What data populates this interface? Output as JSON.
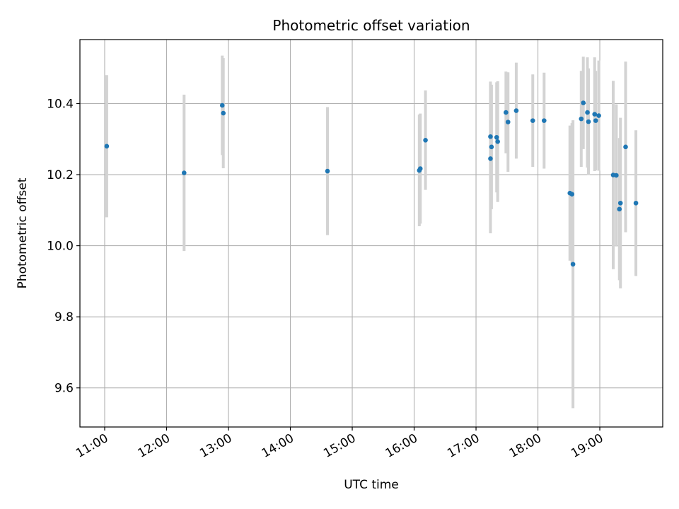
{
  "chart_data": {
    "type": "scatter",
    "title": "Photometric offset variation",
    "xlabel": "UTC time",
    "ylabel": "Photometric offset",
    "x_unit": "hours (UTC)",
    "xlim": [
      "10:36",
      "20:01"
    ],
    "ylim": [
      9.49,
      10.58
    ],
    "grid": true,
    "x_ticks": [
      "11:00",
      "12:00",
      "13:00",
      "14:00",
      "15:00",
      "16:00",
      "17:00",
      "18:00",
      "19:00"
    ],
    "y_ticks": [
      "9.6",
      "9.8",
      "10.0",
      "10.2",
      "10.4"
    ],
    "marker_color": "#1f77b4",
    "errorbar_color": "#d3d3d3",
    "points": [
      {
        "x": "11:02",
        "y": 10.28,
        "yerr": 0.2
      },
      {
        "x": "12:17",
        "y": 10.205,
        "yerr": 0.22
      },
      {
        "x": "12:54",
        "y": 10.395,
        "yerr": 0.14
      },
      {
        "x": "12:55",
        "y": 10.373,
        "yerr": 0.155
      },
      {
        "x": "14:36",
        "y": 10.21,
        "yerr": 0.18
      },
      {
        "x": "16:05",
        "y": 10.212,
        "yerr": 0.157
      },
      {
        "x": "16:06",
        "y": 10.217,
        "yerr": 0.155
      },
      {
        "x": "16:11",
        "y": 10.297,
        "yerr": 0.14
      },
      {
        "x": "17:14",
        "y": 10.307,
        "yerr": 0.155
      },
      {
        "x": "17:14",
        "y": 10.245,
        "yerr": 0.21
      },
      {
        "x": "17:15",
        "y": 10.278,
        "yerr": 0.175
      },
      {
        "x": "17:20",
        "y": 10.305,
        "yerr": 0.155
      },
      {
        "x": "17:21",
        "y": 10.293,
        "yerr": 0.17
      },
      {
        "x": "17:29",
        "y": 10.375,
        "yerr": 0.115
      },
      {
        "x": "17:31",
        "y": 10.348,
        "yerr": 0.14
      },
      {
        "x": "17:39",
        "y": 10.38,
        "yerr": 0.135
      },
      {
        "x": "17:55",
        "y": 10.352,
        "yerr": 0.13
      },
      {
        "x": "18:06",
        "y": 10.352,
        "yerr": 0.135
      },
      {
        "x": "18:31",
        "y": 10.148,
        "yerr": 0.19
      },
      {
        "x": "18:33",
        "y": 10.145,
        "yerr": 0.2
      },
      {
        "x": "18:34",
        "y": 9.948,
        "yerr": 0.405
      },
      {
        "x": "18:42",
        "y": 10.357,
        "yerr": 0.135
      },
      {
        "x": "18:44",
        "y": 10.402,
        "yerr": 0.13
      },
      {
        "x": "18:48",
        "y": 10.375,
        "yerr": 0.155
      },
      {
        "x": "18:49",
        "y": 10.349,
        "yerr": 0.15
      },
      {
        "x": "18:55",
        "y": 10.37,
        "yerr": 0.16
      },
      {
        "x": "18:56",
        "y": 10.352,
        "yerr": 0.14
      },
      {
        "x": "18:59",
        "y": 10.366,
        "yerr": 0.155
      },
      {
        "x": "19:13",
        "y": 10.199,
        "yerr": 0.265
      },
      {
        "x": "19:16",
        "y": 10.198,
        "yerr": 0.2
      },
      {
        "x": "19:19",
        "y": 10.103,
        "yerr": 0.2
      },
      {
        "x": "19:20",
        "y": 10.12,
        "yerr": 0.24
      },
      {
        "x": "19:25",
        "y": 10.278,
        "yerr": 0.24
      },
      {
        "x": "19:35",
        "y": 10.12,
        "yerr": 0.205
      }
    ]
  }
}
